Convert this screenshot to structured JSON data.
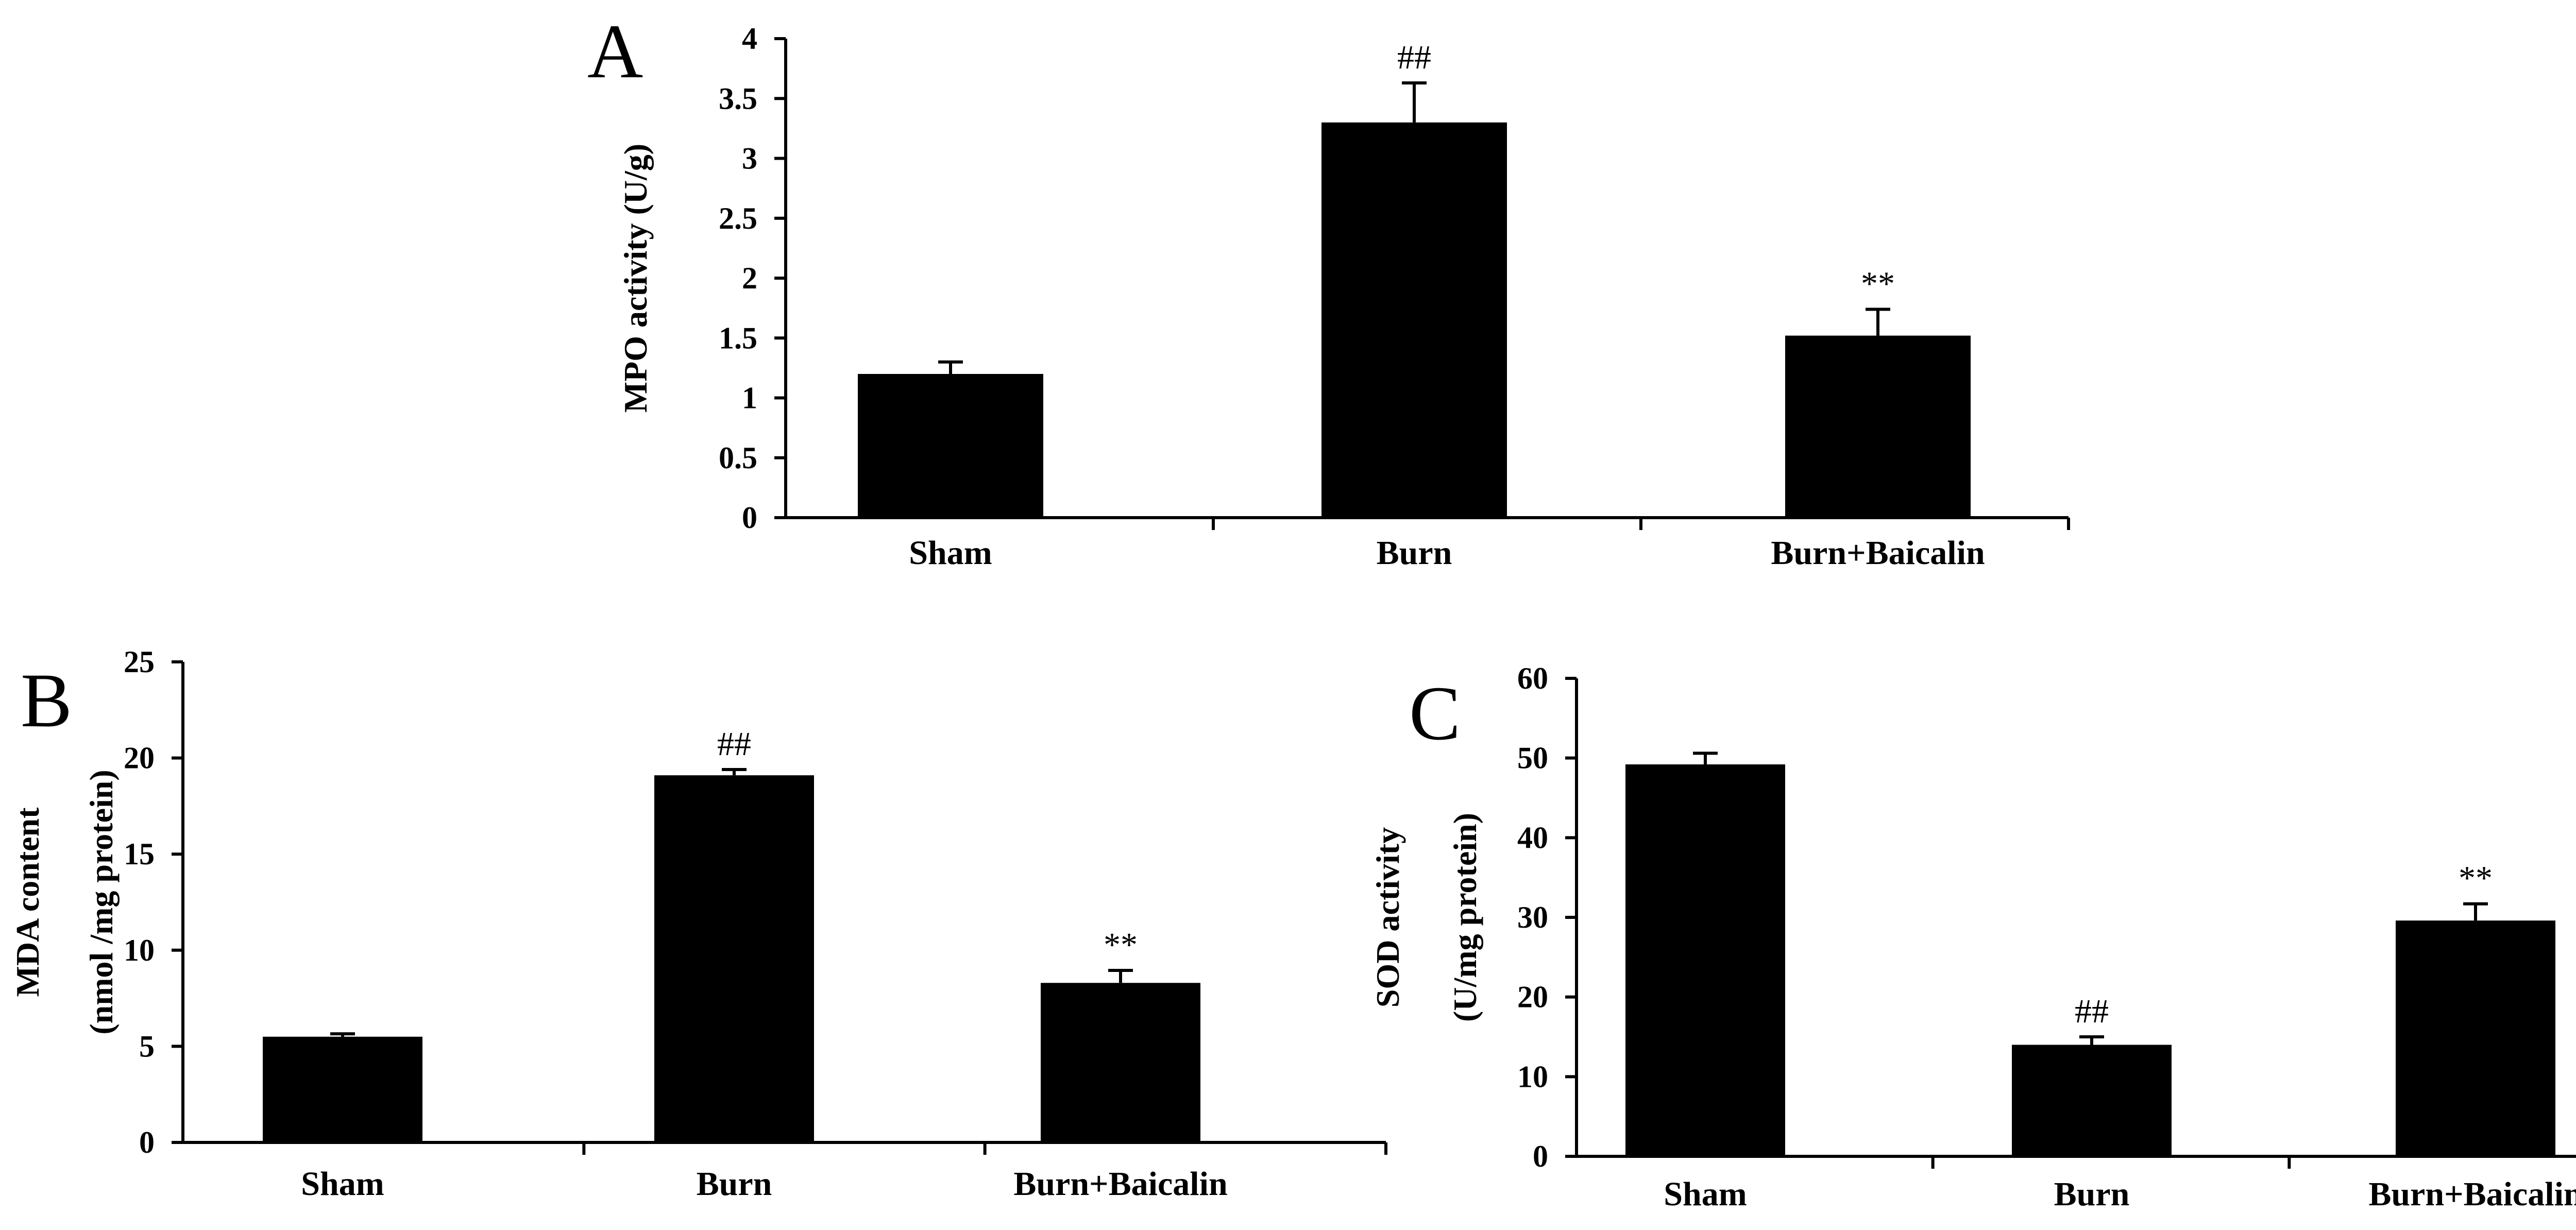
{
  "chart_data": [
    {
      "type": "bar",
      "panel": "A",
      "categories": [
        "Sham",
        "Burn",
        "Burn+Baicalin"
      ],
      "values": [
        1.2,
        3.3,
        1.52
      ],
      "errors": [
        0.1,
        0.33,
        0.22
      ],
      "annotations": [
        "",
        "##",
        "**"
      ],
      "ylabel_lines": [
        "MPO activity (U/g)"
      ],
      "ylim": [
        0,
        4
      ],
      "yticks": [
        0,
        0.5,
        1,
        1.5,
        2,
        2.5,
        3,
        3.5,
        4
      ],
      "ytick_labels": [
        "0",
        "0.5",
        "1",
        "1.5",
        "2",
        "2.5",
        "3",
        "3.5",
        "4"
      ],
      "bar_color": "#000000",
      "grid": false
    },
    {
      "type": "bar",
      "panel": "B",
      "categories": [
        "Sham",
        "Burn",
        "Burn+Baicalin"
      ],
      "values": [
        5.5,
        19.1,
        8.3
      ],
      "errors": [
        0.15,
        0.3,
        0.65
      ],
      "annotations": [
        "",
        "##",
        "**"
      ],
      "ylabel_lines": [
        "MDA content",
        "(nmol /mg protein)"
      ],
      "ylim": [
        0,
        25
      ],
      "yticks": [
        0,
        5,
        10,
        15,
        20,
        25
      ],
      "ytick_labels": [
        "0",
        "5",
        "10",
        "15",
        "20",
        "25"
      ],
      "bar_color": "#000000",
      "grid": false
    },
    {
      "type": "bar",
      "panel": "C",
      "categories": [
        "Sham",
        "Burn",
        "Burn+Baicalin"
      ],
      "values": [
        49.2,
        14.0,
        29.6
      ],
      "errors": [
        1.4,
        1.0,
        2.1
      ],
      "annotations": [
        "",
        "##",
        "**"
      ],
      "ylabel_lines": [
        "SOD activity",
        "(U/mg protein)"
      ],
      "ylim": [
        0,
        60
      ],
      "yticks": [
        0,
        10,
        20,
        30,
        40,
        50,
        60
      ],
      "ytick_labels": [
        "0",
        "10",
        "20",
        "30",
        "40",
        "50",
        "60"
      ],
      "bar_color": "#000000",
      "grid": false
    }
  ]
}
